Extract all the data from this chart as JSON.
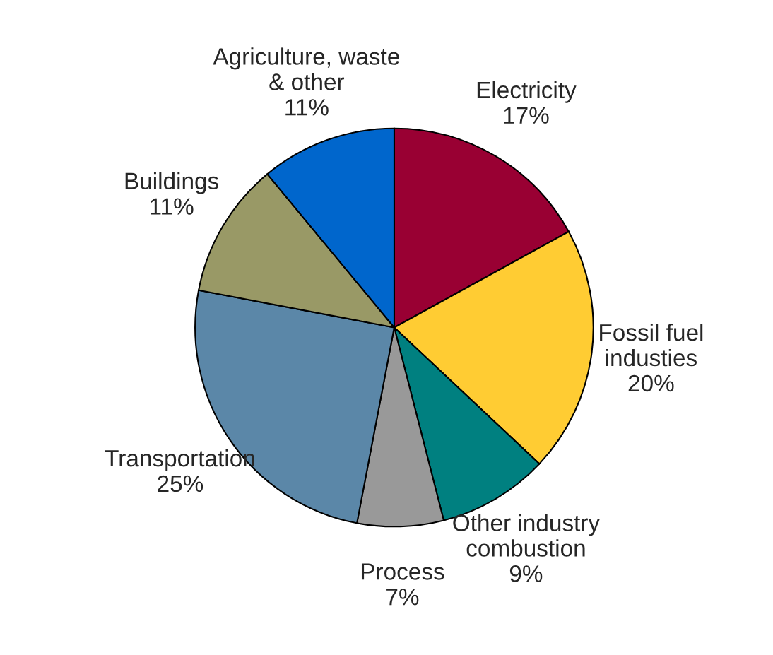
{
  "chart_data": {
    "type": "pie",
    "categories": [
      "Electricity",
      "Fossil fuel\nindusties",
      "Other industry\ncombustion",
      "Process",
      "Transportation",
      "Buildings",
      "Agriculture, waste\n& other"
    ],
    "values": [
      17,
      20,
      9,
      7,
      25,
      11,
      11
    ],
    "value_labels": [
      "17%",
      "20%",
      "9%",
      "7%",
      "25%",
      "11%",
      "11%"
    ],
    "colors": [
      "#990033",
      "#ffcc33",
      "#008080",
      "#999999",
      "#5b87a8",
      "#999966",
      "#0066cc"
    ]
  }
}
